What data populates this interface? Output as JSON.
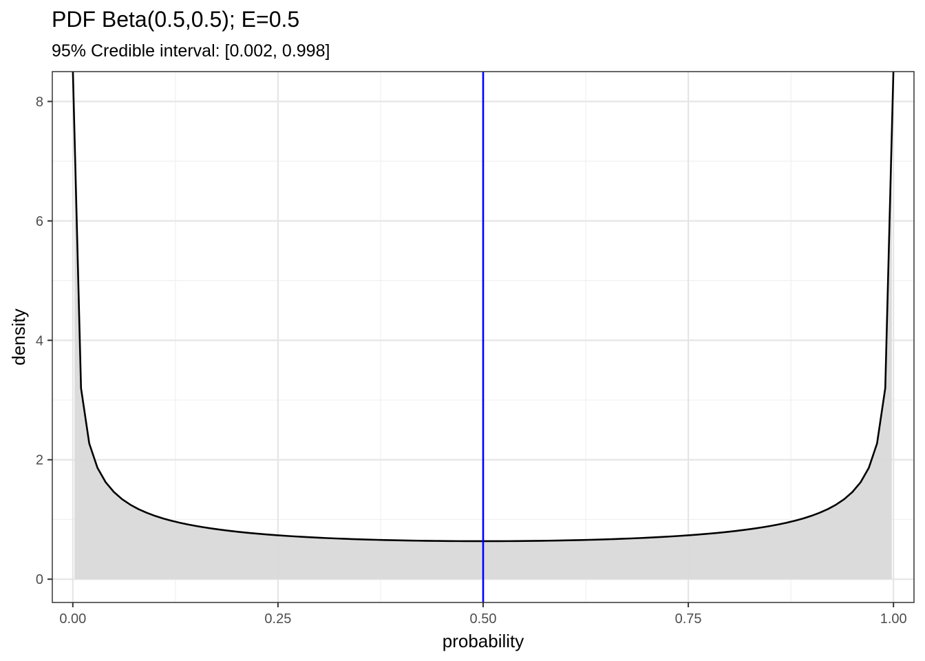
{
  "chart_data": {
    "type": "area",
    "title": "PDF Beta(0.5,0.5); E=0.5",
    "subtitle": "95% Credible interval: [0.002, 0.998]",
    "xlabel": "probability",
    "ylabel": "density",
    "xlim": [
      -0.025,
      1.025
    ],
    "ylim": [
      -0.39,
      8.5
    ],
    "x_ticks": [
      0,
      0.25,
      0.5,
      0.75,
      1
    ],
    "x_tick_labels": [
      "0.00",
      "0.25",
      "0.50",
      "0.75",
      "1.00"
    ],
    "y_ticks": [
      0,
      2,
      4,
      6,
      8
    ],
    "y_tick_labels": [
      "0",
      "2",
      "4",
      "6",
      "8"
    ],
    "x_minor": [
      0.125,
      0.375,
      0.625,
      0.875
    ],
    "y_minor": [
      1,
      3,
      5,
      7
    ],
    "grid": true,
    "distribution": {
      "family": "beta",
      "alpha": 0.5,
      "beta": 0.5
    },
    "expected_value": 0.5,
    "credible_interval": [
      0.002,
      0.998
    ],
    "colors": {
      "curve": "#000000",
      "fill": "#d9d9d9",
      "mean_line": "#0000ff",
      "panel_border": "#333333"
    }
  }
}
